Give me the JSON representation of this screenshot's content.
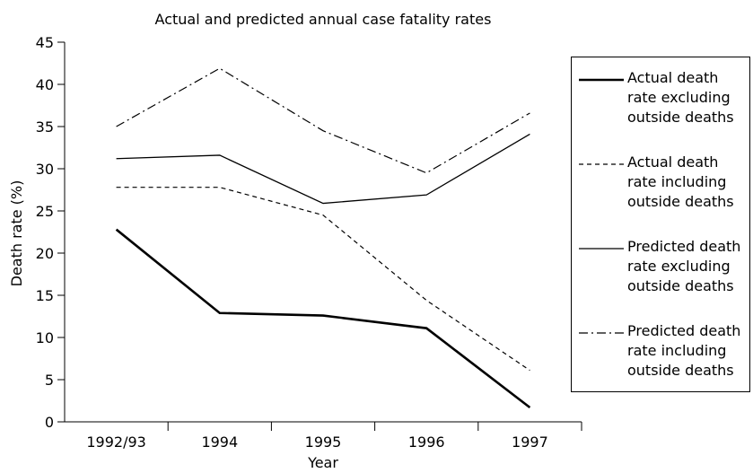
{
  "chart_data": {
    "type": "line",
    "title": "Actual and predicted annual case fatality rates",
    "x_label": "Year",
    "y_label": "Death rate (%)",
    "categories": [
      "1992/93",
      "1994",
      "1995",
      "1996",
      "1997"
    ],
    "series": [
      {
        "name": "Actual death rate excluding outside deaths",
        "color": "#000000",
        "style": "solid",
        "width": 2.6,
        "values": [
          22.8,
          12.9,
          12.6,
          11.1,
          1.7
        ]
      },
      {
        "name": "Actual death rate including outside deaths",
        "color": "#000000",
        "style": "dashed",
        "width": 1.2,
        "values": [
          27.8,
          27.8,
          24.5,
          14.4,
          6.1
        ]
      },
      {
        "name": "Predicted death rate excluding outside deaths",
        "color": "#000000",
        "style": "solid",
        "width": 1.3,
        "values": [
          31.2,
          31.6,
          25.9,
          26.9,
          34.1
        ]
      },
      {
        "name": "Predicted death rate including outside deaths",
        "color": "#000000",
        "style": "dashdot",
        "width": 1.2,
        "values": [
          35.0,
          41.9,
          34.5,
          29.5,
          36.6
        ]
      }
    ],
    "ylim": [
      0,
      45
    ],
    "yticks": [
      0,
      5,
      10,
      15,
      20,
      25,
      30,
      35,
      40,
      45
    ],
    "grid": false,
    "legend": "right"
  }
}
